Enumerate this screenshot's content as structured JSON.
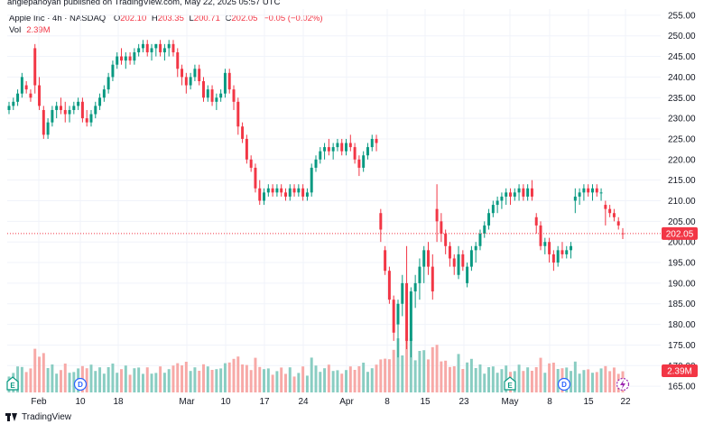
{
  "header": {
    "published": "anglepanoyan published on TradingView.com, May 22, 2025 05:57 UTC",
    "symbol": "Apple Inc · 4h · NASDAQ",
    "o_label": "O",
    "o_value": "202.10",
    "h_label": "H",
    "h_value": "203.35",
    "l_label": "L",
    "l_value": "200.71",
    "c_label": "C",
    "c_value": "202.05",
    "change": "−0.05 (−0.02%)",
    "vol_label": "Vol",
    "vol_value": "2.39M"
  },
  "footer": {
    "brand": "TradingView"
  },
  "colors": {
    "up": "#089981",
    "down": "#f23645",
    "up_vol": "#89cdc2",
    "down_vol": "#f7a9a7",
    "grid": "#f0f3fa",
    "text": "#131722"
  },
  "chart_data": {
    "type": "candlestick",
    "y_ticks": [
      165,
      170,
      175,
      180,
      185,
      190,
      195,
      200,
      205,
      210,
      215,
      220,
      225,
      230,
      235,
      240,
      245,
      250,
      255
    ],
    "ylim": [
      163.5,
      256.5
    ],
    "x_ticks": [
      "Feb",
      "10",
      "18",
      "Mar",
      "10",
      "17",
      "24",
      "Apr",
      "8",
      "15",
      "23",
      "May",
      "8",
      "15",
      "22"
    ],
    "last_price": 202.05,
    "last_price_label": "202.05",
    "last_volume_label": "2.39M",
    "events": [
      {
        "label": "E",
        "icon": "earnings-icon",
        "tick": "Feb"
      },
      {
        "label": "D",
        "icon": "dividend-icon",
        "tick": "10"
      },
      {
        "label": "E",
        "icon": "earnings-icon",
        "tick": "May"
      },
      {
        "label": "D",
        "icon": "dividend-icon",
        "tick": "8"
      }
    ],
    "candles": [
      [
        232,
        234,
        231,
        233
      ],
      [
        233,
        235,
        232,
        234
      ],
      [
        234,
        237,
        233,
        236
      ],
      [
        236,
        241,
        235,
        240
      ],
      [
        238,
        239,
        236,
        237
      ],
      [
        236,
        237,
        234,
        235
      ],
      [
        247,
        248,
        236,
        238
      ],
      [
        238,
        240,
        232,
        233
      ],
      [
        232,
        233,
        225,
        226
      ],
      [
        226,
        230,
        225,
        229
      ],
      [
        229,
        233,
        228,
        232
      ],
      [
        232,
        234,
        230,
        233
      ],
      [
        233,
        235,
        231,
        232
      ],
      [
        232,
        234,
        229,
        231
      ],
      [
        231,
        233,
        229,
        232
      ],
      [
        232,
        234,
        231,
        233
      ],
      [
        233,
        235,
        232,
        234
      ],
      [
        234,
        235,
        229,
        230
      ],
      [
        230,
        232,
        228,
        229
      ],
      [
        229,
        232,
        228,
        231
      ],
      [
        231,
        234,
        230,
        233
      ],
      [
        233,
        236,
        232,
        235
      ],
      [
        235,
        238,
        234,
        237
      ],
      [
        237,
        241,
        236,
        240
      ],
      [
        240,
        244,
        239,
        243
      ],
      [
        243,
        246,
        242,
        245
      ],
      [
        245,
        247,
        243,
        244
      ],
      [
        244,
        246,
        242,
        245
      ],
      [
        245,
        246,
        243,
        244
      ],
      [
        244,
        247,
        243,
        246
      ],
      [
        246,
        248,
        245,
        247
      ],
      [
        247,
        249,
        246,
        248
      ],
      [
        248,
        249,
        245,
        246
      ],
      [
        246,
        248,
        244,
        247
      ],
      [
        247,
        248,
        245,
        248
      ],
      [
        248,
        249,
        245,
        246
      ],
      [
        246,
        248,
        244,
        247
      ],
      [
        247,
        249,
        245,
        248
      ],
      [
        248,
        249,
        245,
        246
      ],
      [
        246,
        247,
        240,
        242
      ],
      [
        242,
        243,
        238,
        240
      ],
      [
        240,
        241,
        236,
        238
      ],
      [
        238,
        241,
        237,
        240
      ],
      [
        240,
        243,
        239,
        242
      ],
      [
        242,
        243,
        238,
        239
      ],
      [
        239,
        240,
        234,
        235
      ],
      [
        235,
        238,
        234,
        237
      ],
      [
        237,
        238,
        233,
        234
      ],
      [
        234,
        236,
        232,
        235
      ],
      [
        235,
        237,
        234,
        236
      ],
      [
        236,
        242,
        235,
        241
      ],
      [
        241,
        242,
        236,
        237
      ],
      [
        237,
        238,
        232,
        234
      ],
      [
        234,
        235,
        226,
        228
      ],
      [
        228,
        229,
        224,
        225
      ],
      [
        225,
        226,
        219,
        220
      ],
      [
        220,
        221,
        217,
        218
      ],
      [
        218,
        219,
        212,
        213
      ],
      [
        213,
        215,
        209,
        210
      ],
      [
        210,
        213,
        209,
        212
      ],
      [
        212,
        214,
        211,
        213
      ],
      [
        213,
        214,
        211,
        212
      ],
      [
        212,
        214,
        211,
        213
      ],
      [
        213,
        214,
        211,
        212
      ],
      [
        212,
        213,
        210,
        211
      ],
      [
        211,
        214,
        210,
        213
      ],
      [
        213,
        214,
        211,
        212
      ],
      [
        212,
        214,
        211,
        213
      ],
      [
        213,
        214,
        210,
        211
      ],
      [
        211,
        213,
        210,
        212
      ],
      [
        212,
        219,
        211,
        218
      ],
      [
        218,
        221,
        217,
        220
      ],
      [
        220,
        223,
        219,
        222
      ],
      [
        222,
        224,
        220,
        223
      ],
      [
        223,
        225,
        221,
        222
      ],
      [
        222,
        224,
        220,
        223
      ],
      [
        223,
        225,
        222,
        224
      ],
      [
        224,
        225,
        221,
        222
      ],
      [
        222,
        225,
        221,
        224
      ],
      [
        224,
        226,
        222,
        223
      ],
      [
        223,
        224,
        219,
        220
      ],
      [
        220,
        221,
        216,
        218
      ],
      [
        218,
        222,
        217,
        221
      ],
      [
        221,
        224,
        220,
        223
      ],
      [
        223,
        226,
        222,
        225
      ],
      [
        225,
        226,
        222,
        224
      ],
      [
        207,
        208,
        200,
        203
      ],
      [
        198,
        199,
        192,
        193
      ],
      [
        193,
        194,
        185,
        186
      ],
      [
        186,
        187,
        176,
        178
      ],
      [
        180,
        186,
        172,
        185
      ],
      [
        185,
        192,
        182,
        190
      ],
      [
        190,
        199,
        174,
        176
      ],
      [
        176,
        189,
        172,
        188
      ],
      [
        188,
        192,
        184,
        190
      ],
      [
        190,
        196,
        186,
        194
      ],
      [
        194,
        199,
        190,
        198
      ],
      [
        198,
        200,
        192,
        194
      ],
      [
        194,
        197,
        186,
        188
      ],
      [
        208,
        214,
        200,
        205
      ],
      [
        205,
        207,
        200,
        202
      ],
      [
        202,
        203,
        197,
        199
      ],
      [
        199,
        200,
        194,
        196
      ],
      [
        196,
        197,
        192,
        194
      ],
      [
        192,
        199,
        191,
        197
      ],
      [
        197,
        198,
        193,
        194
      ],
      [
        190,
        195,
        189,
        194
      ],
      [
        194,
        199,
        193,
        198
      ],
      [
        198,
        200,
        195,
        199
      ],
      [
        199,
        203,
        198,
        202
      ],
      [
        202,
        205,
        201,
        204
      ],
      [
        204,
        208,
        203,
        207
      ],
      [
        207,
        210,
        206,
        209
      ],
      [
        209,
        211,
        207,
        210
      ],
      [
        210,
        212,
        208,
        211
      ],
      [
        211,
        213,
        209,
        212
      ],
      [
        212,
        213,
        209,
        211
      ],
      [
        211,
        213,
        210,
        212
      ],
      [
        212,
        214,
        210,
        213
      ],
      [
        213,
        214,
        210,
        211
      ],
      [
        211,
        214,
        210,
        213
      ],
      [
        213,
        215,
        210,
        211
      ],
      [
        206,
        207,
        202,
        204
      ],
      [
        204,
        205,
        198,
        199
      ],
      [
        199,
        201,
        197,
        200
      ],
      [
        200,
        201,
        195,
        197
      ],
      [
        197,
        198,
        193,
        195
      ],
      [
        195,
        199,
        194,
        198
      ],
      [
        198,
        200,
        196,
        197
      ],
      [
        197,
        199,
        196,
        198
      ],
      [
        198,
        200,
        196,
        199
      ],
      [
        210,
        213,
        207,
        211
      ],
      [
        211,
        213,
        209,
        212
      ],
      [
        212,
        214,
        210,
        213
      ],
      [
        213,
        214,
        211,
        212
      ],
      [
        212,
        214,
        210,
        213
      ],
      [
        213,
        214,
        211,
        212
      ],
      [
        212,
        213,
        210,
        212
      ],
      [
        209,
        210,
        204,
        208
      ],
      [
        208,
        209,
        206,
        207
      ],
      [
        207,
        208,
        205,
        206
      ],
      [
        205,
        206,
        203,
        204
      ],
      [
        202.1,
        203.35,
        200.71,
        202.05
      ]
    ]
  }
}
